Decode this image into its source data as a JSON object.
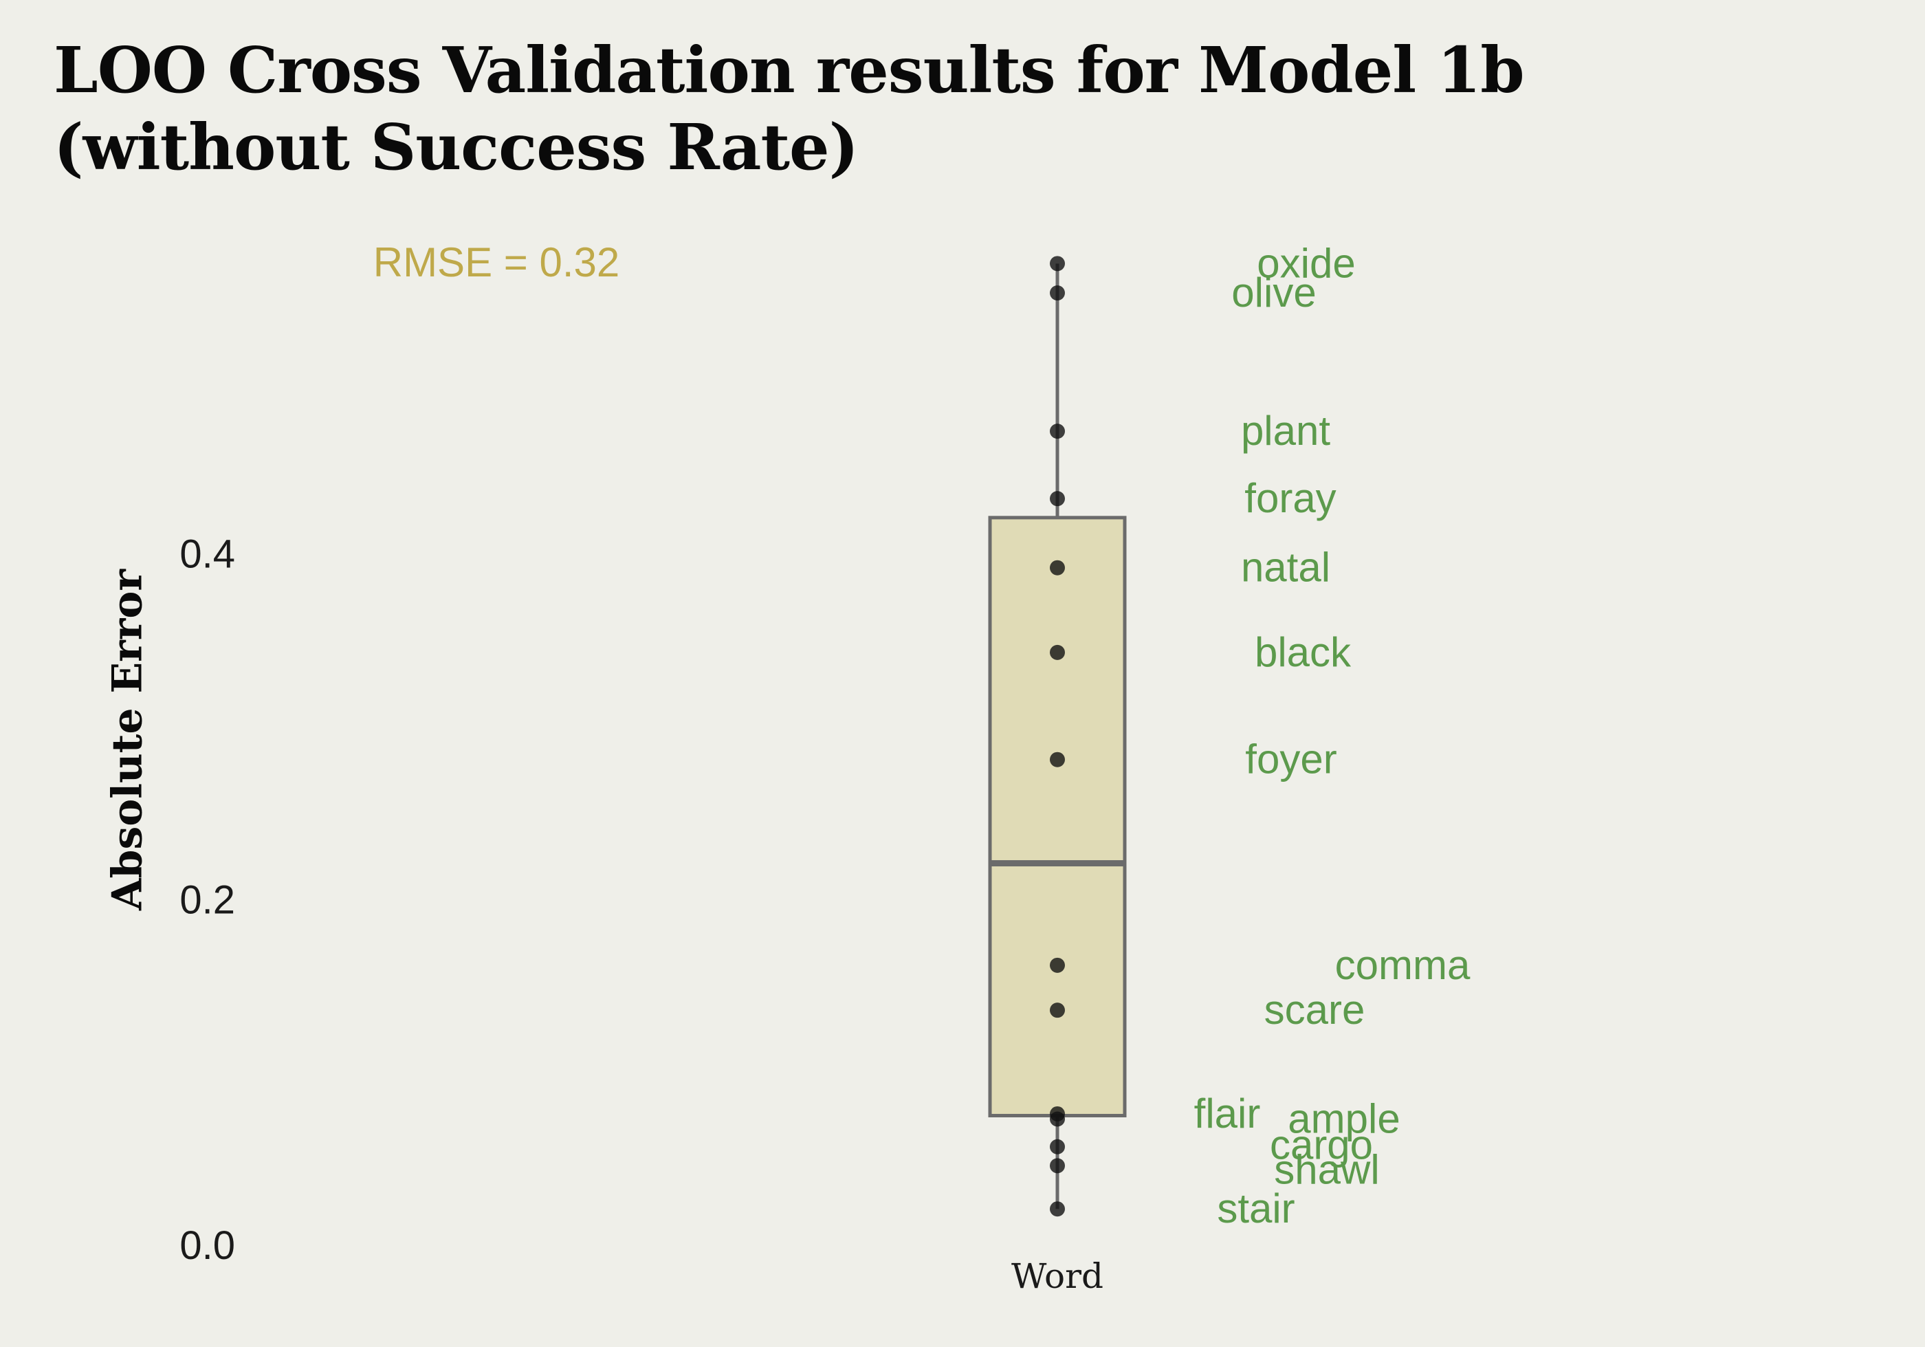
{
  "title_lines": [
    "LOO Cross Validation results for Model 1b",
    "(without Success Rate)"
  ],
  "annotation": "RMSE = 0.32",
  "colors": {
    "background": "#efefe9",
    "box_fill": "#e0dbb6",
    "box_stroke": "#6b6b6b",
    "point": "#111111",
    "label": "#5c9a4c",
    "annotation": "#bfa94a"
  },
  "chart_data": {
    "type": "box",
    "title": "LOO Cross Validation results for Model 1b (without Success Rate)",
    "ylabel": "Absolute Error",
    "xlabel": "",
    "categories": [
      "Word"
    ],
    "ylim": [
      -0.01,
      0.58
    ],
    "yticks": [
      0.0,
      0.2,
      0.4
    ],
    "ytick_labels": [
      "0.0",
      "0.2",
      "0.4"
    ],
    "grid": false,
    "box": {
      "q1": 0.075,
      "median": 0.221,
      "q3": 0.421,
      "whisker_low": 0.021,
      "whisker_high": 0.568
    },
    "points": [
      {
        "label": "oxide",
        "value": 0.568
      },
      {
        "label": "olive",
        "value": 0.551
      },
      {
        "label": "plant",
        "value": 0.471
      },
      {
        "label": "foray",
        "value": 0.432
      },
      {
        "label": "natal",
        "value": 0.392
      },
      {
        "label": "black",
        "value": 0.343
      },
      {
        "label": "foyer",
        "value": 0.281
      },
      {
        "label": "comma",
        "value": 0.162
      },
      {
        "label": "scare",
        "value": 0.136
      },
      {
        "label": "flair",
        "value": 0.076
      },
      {
        "label": "ample",
        "value": 0.073
      },
      {
        "label": "cargo",
        "value": 0.057
      },
      {
        "label": "shawl",
        "value": 0.046
      },
      {
        "label": "stair",
        "value": 0.021
      }
    ]
  }
}
